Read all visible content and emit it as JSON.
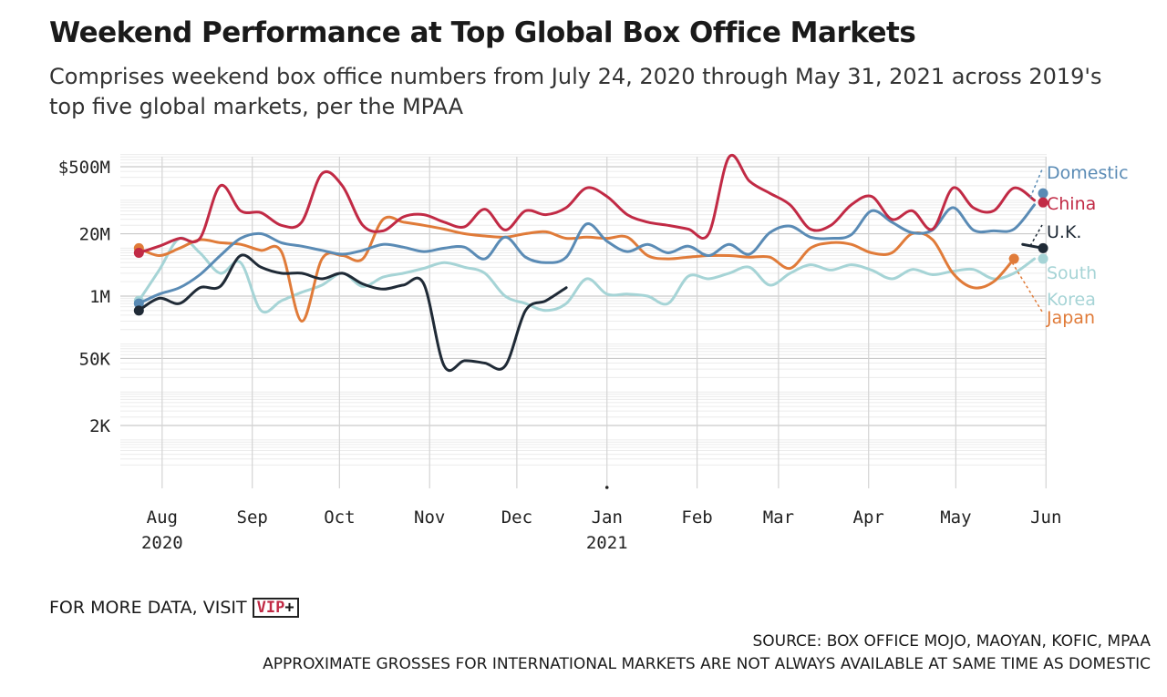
{
  "title": "Weekend Performance at Top Global Box Office Markets",
  "subtitle": "Comprises weekend box office numbers from July 24, 2020 through May 31, 2021 across 2019's top five global markets, per the MPAA",
  "footer": {
    "more_label": "FOR MORE DATA, VISIT",
    "vip_main": "VIP",
    "vip_plus": "+",
    "source": "SOURCE: BOX OFFICE MOJO, MAOYAN, KOFIC, MPAA",
    "note": "APPROXIMATE GROSSES FOR INTERNATIONAL MARKETS ARE NOT ALWAYS AVAILABLE AT SAME TIME AS DOMESTIC"
  },
  "chart_data": {
    "type": "line",
    "y_scale": "log",
    "ylim": [
      100,
      1000000000
    ],
    "y_ticks": [
      {
        "value": 500000000,
        "label": "$500M"
      },
      {
        "value": 20000000,
        "label": "20M"
      },
      {
        "value": 1000000,
        "label": "1M"
      },
      {
        "value": 50000,
        "label": "50K"
      },
      {
        "value": 2000,
        "label": "2K"
      }
    ],
    "xlim": [
      "2020-07-17",
      "2021-06-05"
    ],
    "x_ticks": [
      {
        "date": "2020-08-01",
        "label": "Aug",
        "year": "2020"
      },
      {
        "date": "2020-09-01",
        "label": "Sep",
        "year": ""
      },
      {
        "date": "2020-10-01",
        "label": "Oct",
        "year": ""
      },
      {
        "date": "2020-11-01",
        "label": "Nov",
        "year": ""
      },
      {
        "date": "2020-12-01",
        "label": "Dec",
        "year": ""
      },
      {
        "date": "2021-01-01",
        "label": "Jan",
        "year": "2021"
      },
      {
        "date": "2021-02-01",
        "label": "Feb",
        "year": ""
      },
      {
        "date": "2021-03-01",
        "label": "Mar",
        "year": ""
      },
      {
        "date": "2021-04-01",
        "label": "Apr",
        "year": ""
      },
      {
        "date": "2021-05-01",
        "label": "May",
        "year": ""
      },
      {
        "date": "2021-06-01",
        "label": "Jun",
        "year": ""
      }
    ],
    "grid": true,
    "series": [
      {
        "name": "Domestic",
        "label_lines": [
          "Domestic"
        ],
        "color": "#5a8bb5",
        "points": [
          [
            "2020-07-24",
            700000
          ],
          [
            "2020-07-31",
            1100000
          ],
          [
            "2020-08-07",
            1500000
          ],
          [
            "2020-08-14",
            2800000
          ],
          [
            "2020-08-21",
            7000000
          ],
          [
            "2020-08-28",
            16000000
          ],
          [
            "2020-09-04",
            20000000
          ],
          [
            "2020-09-11",
            13000000
          ],
          [
            "2020-09-18",
            11000000
          ],
          [
            "2020-09-25",
            9000000
          ],
          [
            "2020-10-02",
            7500000
          ],
          [
            "2020-10-09",
            9000000
          ],
          [
            "2020-10-16",
            12000000
          ],
          [
            "2020-10-23",
            10500000
          ],
          [
            "2020-10-30",
            8500000
          ],
          [
            "2020-11-06",
            10000000
          ],
          [
            "2020-11-13",
            10500000
          ],
          [
            "2020-11-20",
            6000000
          ],
          [
            "2020-11-27",
            17000000
          ],
          [
            "2020-12-04",
            6500000
          ],
          [
            "2020-12-11",
            5000000
          ],
          [
            "2020-12-18",
            6500000
          ],
          [
            "2020-12-25",
            32000000
          ],
          [
            "2021-01-01",
            14000000
          ],
          [
            "2021-01-08",
            8500000
          ],
          [
            "2021-01-15",
            12000000
          ],
          [
            "2021-01-22",
            8000000
          ],
          [
            "2021-01-29",
            11000000
          ],
          [
            "2021-02-05",
            7000000
          ],
          [
            "2021-02-12",
            12000000
          ],
          [
            "2021-02-19",
            7500000
          ],
          [
            "2021-02-26",
            21000000
          ],
          [
            "2021-03-05",
            29000000
          ],
          [
            "2021-03-12",
            17000000
          ],
          [
            "2021-03-19",
            16000000
          ],
          [
            "2021-03-26",
            19000000
          ],
          [
            "2021-04-02",
            60000000
          ],
          [
            "2021-04-09",
            35000000
          ],
          [
            "2021-04-16",
            21000000
          ],
          [
            "2021-04-23",
            24000000
          ],
          [
            "2021-04-30",
            70000000
          ],
          [
            "2021-05-07",
            24000000
          ],
          [
            "2021-05-14",
            23000000
          ],
          [
            "2021-05-21",
            25000000
          ],
          [
            "2021-05-28",
            80000000
          ]
        ],
        "end_point": [
          "2021-05-31",
          140000000
        ]
      },
      {
        "name": "China",
        "label_lines": [
          "China"
        ],
        "color": "#c12a45",
        "points": [
          [
            "2020-07-24",
            8000000
          ],
          [
            "2020-07-31",
            11000000
          ],
          [
            "2020-08-07",
            16000000
          ],
          [
            "2020-08-14",
            16000000
          ],
          [
            "2020-08-21",
            200000000
          ],
          [
            "2020-08-28",
            60000000
          ],
          [
            "2020-09-04",
            55000000
          ],
          [
            "2020-09-11",
            30000000
          ],
          [
            "2020-09-18",
            35000000
          ],
          [
            "2020-09-25",
            360000000
          ],
          [
            "2020-10-02",
            200000000
          ],
          [
            "2020-10-09",
            30000000
          ],
          [
            "2020-10-16",
            23000000
          ],
          [
            "2020-10-23",
            45000000
          ],
          [
            "2020-10-30",
            50000000
          ],
          [
            "2020-11-06",
            35000000
          ],
          [
            "2020-11-13",
            28000000
          ],
          [
            "2020-11-20",
            65000000
          ],
          [
            "2020-11-27",
            24000000
          ],
          [
            "2020-12-04",
            60000000
          ],
          [
            "2020-12-11",
            50000000
          ],
          [
            "2020-12-18",
            70000000
          ],
          [
            "2020-12-25",
            180000000
          ],
          [
            "2021-01-01",
            120000000
          ],
          [
            "2021-01-08",
            50000000
          ],
          [
            "2021-01-15",
            35000000
          ],
          [
            "2021-01-22",
            30000000
          ],
          [
            "2021-01-29",
            25000000
          ],
          [
            "2021-02-05",
            20000000
          ],
          [
            "2021-02-12",
            800000000
          ],
          [
            "2021-02-19",
            250000000
          ],
          [
            "2021-02-26",
            140000000
          ],
          [
            "2021-03-05",
            80000000
          ],
          [
            "2021-03-12",
            25000000
          ],
          [
            "2021-03-19",
            30000000
          ],
          [
            "2021-03-26",
            80000000
          ],
          [
            "2021-04-02",
            120000000
          ],
          [
            "2021-04-09",
            40000000
          ],
          [
            "2021-04-16",
            60000000
          ],
          [
            "2021-04-23",
            25000000
          ],
          [
            "2021-04-30",
            180000000
          ],
          [
            "2021-05-07",
            70000000
          ],
          [
            "2021-05-14",
            60000000
          ],
          [
            "2021-05-21",
            180000000
          ],
          [
            "2021-05-28",
            100000000
          ]
        ],
        "end_point": [
          "2021-05-31",
          90000000
        ]
      },
      {
        "name": "U.K.",
        "label_lines": [
          "U.K."
        ],
        "color": "#1f2a36",
        "points": [
          [
            "2020-07-24",
            500000
          ],
          [
            "2020-07-31",
            900000
          ],
          [
            "2020-08-07",
            700000
          ],
          [
            "2020-08-14",
            1500000
          ],
          [
            "2020-08-21",
            1600000
          ],
          [
            "2020-08-28",
            7000000
          ],
          [
            "2020-09-04",
            4000000
          ],
          [
            "2020-09-11",
            3000000
          ],
          [
            "2020-09-18",
            3000000
          ],
          [
            "2020-09-25",
            2300000
          ],
          [
            "2020-10-02",
            3000000
          ],
          [
            "2020-10-09",
            1800000
          ],
          [
            "2020-10-16",
            1400000
          ],
          [
            "2020-10-23",
            1700000
          ],
          [
            "2020-10-30",
            1800000
          ],
          [
            "2020-11-06",
            35000
          ],
          [
            "2020-11-13",
            45000
          ],
          [
            "2020-11-20",
            40000
          ],
          [
            "2020-11-27",
            35000
          ],
          [
            "2020-12-04",
            500000
          ],
          [
            "2020-12-11",
            800000
          ],
          [
            "2020-12-18",
            1500000
          ]
        ],
        "end_point": [
          "2021-05-31",
          10000000
        ],
        "end_stub_start": [
          "2021-05-24",
          12000000
        ]
      },
      {
        "name": "South Korea",
        "label_lines": [
          "South",
          "Korea"
        ],
        "color": "#a6d4d6",
        "points": [
          [
            "2020-07-24",
            800000
          ],
          [
            "2020-07-31",
            3500000
          ],
          [
            "2020-08-07",
            16000000
          ],
          [
            "2020-08-14",
            8000000
          ],
          [
            "2020-08-21",
            3000000
          ],
          [
            "2020-08-28",
            5000000
          ],
          [
            "2020-09-04",
            500000
          ],
          [
            "2020-09-11",
            800000
          ],
          [
            "2020-09-18",
            1200000
          ],
          [
            "2020-09-25",
            1700000
          ],
          [
            "2020-10-02",
            3000000
          ],
          [
            "2020-10-09",
            1600000
          ],
          [
            "2020-10-16",
            2500000
          ],
          [
            "2020-10-23",
            3000000
          ],
          [
            "2020-10-30",
            3800000
          ],
          [
            "2020-11-06",
            5000000
          ],
          [
            "2020-11-13",
            4000000
          ],
          [
            "2020-11-20",
            3000000
          ],
          [
            "2020-11-27",
            1000000
          ],
          [
            "2020-12-04",
            700000
          ],
          [
            "2020-12-11",
            500000
          ],
          [
            "2020-12-18",
            700000
          ],
          [
            "2020-12-25",
            2300000
          ],
          [
            "2021-01-01",
            1100000
          ],
          [
            "2021-01-08",
            1100000
          ],
          [
            "2021-01-15",
            1000000
          ],
          [
            "2021-01-22",
            700000
          ],
          [
            "2021-01-29",
            2600000
          ],
          [
            "2021-02-05",
            2300000
          ],
          [
            "2021-02-12",
            3000000
          ],
          [
            "2021-02-19",
            4000000
          ],
          [
            "2021-02-26",
            1700000
          ],
          [
            "2021-03-05",
            3000000
          ],
          [
            "2021-03-12",
            4500000
          ],
          [
            "2021-03-19",
            3500000
          ],
          [
            "2021-03-26",
            4500000
          ],
          [
            "2021-04-02",
            3500000
          ],
          [
            "2021-04-09",
            2300000
          ],
          [
            "2021-04-16",
            3600000
          ],
          [
            "2021-04-23",
            2800000
          ],
          [
            "2021-04-30",
            3300000
          ],
          [
            "2021-05-07",
            3600000
          ],
          [
            "2021-05-14",
            2300000
          ],
          [
            "2021-05-21",
            3000000
          ],
          [
            "2021-05-28",
            6000000
          ]
        ],
        "end_point": [
          "2021-05-31",
          6000000
        ]
      },
      {
        "name": "Japan",
        "label_lines": [
          "Japan"
        ],
        "color": "#e07b39",
        "points": [
          [
            "2020-07-24",
            10000000
          ],
          [
            "2020-07-31",
            7000000
          ],
          [
            "2020-08-07",
            10000000
          ],
          [
            "2020-08-14",
            15000000
          ],
          [
            "2020-08-21",
            13000000
          ],
          [
            "2020-08-28",
            12000000
          ],
          [
            "2020-09-04",
            9000000
          ],
          [
            "2020-09-11",
            8500000
          ],
          [
            "2020-09-18",
            300000
          ],
          [
            "2020-09-25",
            6000000
          ],
          [
            "2020-10-02",
            7000000
          ],
          [
            "2020-10-09",
            6000000
          ],
          [
            "2020-10-16",
            40000000
          ],
          [
            "2020-10-23",
            35000000
          ],
          [
            "2020-10-30",
            30000000
          ],
          [
            "2020-11-06",
            25000000
          ],
          [
            "2020-11-13",
            20000000
          ],
          [
            "2020-11-20",
            18000000
          ],
          [
            "2020-11-27",
            17000000
          ],
          [
            "2020-12-04",
            20000000
          ],
          [
            "2020-12-11",
            22000000
          ],
          [
            "2020-12-18",
            16000000
          ],
          [
            "2020-12-25",
            17000000
          ],
          [
            "2021-01-01",
            16000000
          ],
          [
            "2021-01-08",
            17000000
          ],
          [
            "2021-01-15",
            7000000
          ],
          [
            "2021-01-22",
            6000000
          ],
          [
            "2021-01-29",
            6500000
          ],
          [
            "2021-02-05",
            7000000
          ],
          [
            "2021-02-12",
            7000000
          ],
          [
            "2021-02-19",
            6500000
          ],
          [
            "2021-02-26",
            6500000
          ],
          [
            "2021-03-05",
            3800000
          ],
          [
            "2021-03-12",
            10000000
          ],
          [
            "2021-03-19",
            13000000
          ],
          [
            "2021-03-26",
            12000000
          ],
          [
            "2021-04-02",
            8000000
          ],
          [
            "2021-04-09",
            8000000
          ],
          [
            "2021-04-16",
            20000000
          ],
          [
            "2021-04-23",
            15000000
          ],
          [
            "2021-04-30",
            3000000
          ],
          [
            "2021-05-07",
            1500000
          ],
          [
            "2021-05-14",
            2000000
          ],
          [
            "2021-05-21",
            6000000
          ]
        ],
        "end_point": [
          "2021-05-21",
          6000000
        ]
      }
    ]
  }
}
